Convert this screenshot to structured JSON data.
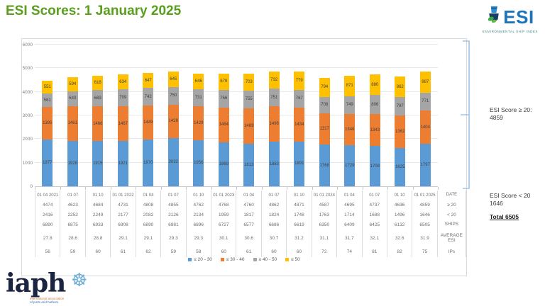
{
  "title": "ESI Scores: 1 January 2025",
  "esi_logo": {
    "name": "ESI",
    "subtitle": "ENVIRONMENTAL SHIP INDEX"
  },
  "chart_data": {
    "type": "bar",
    "stacked": true,
    "title": "",
    "xlabel": "",
    "ylabel": "",
    "ylim": [
      0,
      6000
    ],
    "yticks": [
      0,
      1000,
      2000,
      3000,
      4000,
      5000,
      6000
    ],
    "grid": true,
    "legend_position": "bottom",
    "categories": [
      "01 04 2021",
      "01 07",
      "01 10",
      "01 01 2022",
      "01 04",
      "01 07",
      "01 10",
      "01 01 2023",
      "01 04",
      "01 07",
      "01 10",
      "01 01 2024",
      "01 04",
      "01 07",
      "01 10",
      "01 01 2025"
    ],
    "series": [
      {
        "name": "≥ 20 - 30",
        "color": "#5B9BD5",
        "values": [
          1977,
          1928,
          1915,
          1921,
          1970,
          2032,
          1956,
          1869,
          1813,
          1883,
          1891,
          1768,
          1729,
          1708,
          1625,
          1797
        ]
      },
      {
        "name": "≥ 30 - 40",
        "color": "#ED7D31",
        "values": [
          1385,
          1461,
          1468,
          1467,
          1449,
          1428,
          1429,
          1464,
          1489,
          1496,
          1434,
          1317,
          1346,
          1343,
          1362,
          1404
        ]
      },
      {
        "name": "≥ 40 - 50",
        "color": "#A5A5A5",
        "values": [
          561,
          640,
          683,
          709,
          742,
          750,
          731,
          756,
          755,
          751,
          767,
          708,
          749,
          806,
          787,
          771
        ]
      },
      {
        "name": "≥ 50",
        "color": "#FFC000",
        "values": [
          551,
          594,
          618,
          634,
          647,
          645,
          646,
          679,
          703,
          732,
          779,
          794,
          871,
          880,
          862,
          887
        ]
      }
    ]
  },
  "table": {
    "rows": [
      {
        "key": "date",
        "label": "DATE",
        "values": [
          "01 04 2021",
          "01 07",
          "01 10",
          "01 01 2022",
          "01 04",
          "01 07",
          "01 10",
          "01 01 2023",
          "01 04",
          "01 07",
          "01 10",
          "01 01 2024",
          "01 04",
          "01 07",
          "01 10",
          "01 01 2025"
        ]
      },
      {
        "key": "ge20",
        "label": "≥ 20",
        "values": [
          "4474",
          "4623",
          "4684",
          "4731",
          "4808",
          "4855",
          "4762",
          "4768",
          "4760",
          "4862",
          "4871",
          "4587",
          "4695",
          "4737",
          "4636",
          "4859"
        ]
      },
      {
        "key": "lt20",
        "label": "< 20",
        "values": [
          "2416",
          "2252",
          "2249",
          "2177",
          "2082",
          "2126",
          "2134",
          "1959",
          "1817",
          "1824",
          "1748",
          "1763",
          "1714",
          "1688",
          "1496",
          "1646"
        ]
      },
      {
        "key": "ships",
        "label": "SHIPS",
        "values": [
          "6890",
          "6875",
          "6933",
          "6908",
          "6890",
          "6981",
          "6896",
          "6727",
          "6577",
          "6686",
          "6619",
          "6350",
          "6409",
          "6425",
          "6132",
          "6505"
        ]
      },
      {
        "key": "avg",
        "label": "AVERAGE ESI",
        "values": [
          "27.8",
          "28.6",
          "28.8",
          "29.1",
          "29.1",
          "29.3",
          "29.3",
          "30.1",
          "30.6",
          "30.7",
          "31.2",
          "31.1",
          "31.7",
          "32.1",
          "32.6",
          "31.9"
        ]
      },
      {
        "key": "ips",
        "label": "IPs",
        "values": [
          "56",
          "59",
          "60",
          "61",
          "62",
          "59",
          "58",
          "60",
          "61",
          "60",
          "60",
          "72",
          "74",
          "81",
          "82",
          "75"
        ]
      }
    ]
  },
  "annotations": {
    "ge20_label": "ESI Score  ≥ 20:",
    "ge20_value": "4859",
    "lt20_label": "ESI Score < 20",
    "lt20_value": "1646",
    "total_label": "Total 6505",
    "bracket_color": "#9DC3E6"
  },
  "footer_logo": {
    "text": "iaph",
    "sub_line1": "international association",
    "sub_line2": "of ports and harbors"
  },
  "colors": {
    "title_green": "#5a9e1e",
    "esi_blue": "#1c75bc"
  }
}
